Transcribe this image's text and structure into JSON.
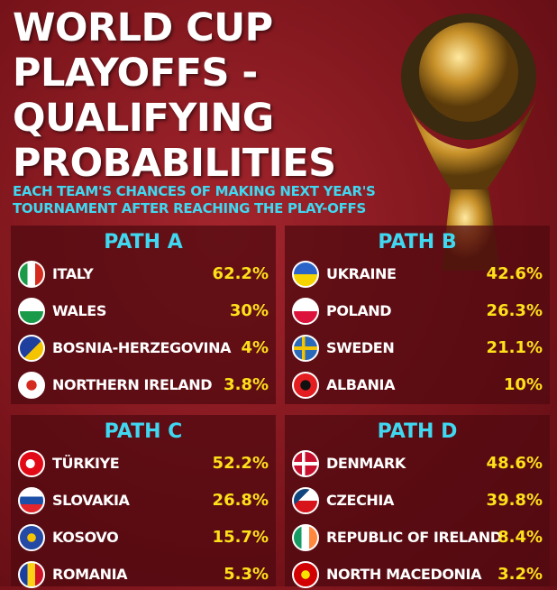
{
  "header": {
    "title": [
      "WORLD CUP",
      "PLAYOFFS -",
      "QUALIFYING",
      "PROBABILITIES"
    ],
    "subtitle": [
      "EACH TEAM'S CHANCES OF MAKING NEXT YEAR'S",
      "TOURNAMENT AFTER REACHING THE PLAY-OFFS"
    ]
  },
  "paths": [
    {
      "name": "PATH A",
      "teams": [
        {
          "name": "ITALY",
          "value": "62.2%"
        },
        {
          "name": "WALES",
          "value": "30%"
        },
        {
          "name": "BOSNIA-HERZEGOVINA",
          "value": "4%"
        },
        {
          "name": "NORTHERN IRELAND",
          "value": "3.8%"
        }
      ]
    },
    {
      "name": "PATH B",
      "teams": [
        {
          "name": "UKRAINE",
          "value": "42.6%"
        },
        {
          "name": "POLAND",
          "value": "26.3%"
        },
        {
          "name": "SWEDEN",
          "value": "21.1%"
        },
        {
          "name": "ALBANIA",
          "value": "10%"
        }
      ]
    },
    {
      "name": "PATH C",
      "teams": [
        {
          "name": "TÜRKIYE",
          "value": "52.2%"
        },
        {
          "name": "SLOVAKIA",
          "value": "26.8%"
        },
        {
          "name": "KOSOVO",
          "value": "15.7%"
        },
        {
          "name": "ROMANIA",
          "value": "5.3%"
        }
      ]
    },
    {
      "name": "PATH D",
      "teams": [
        {
          "name": "DENMARK",
          "value": "48.6%"
        },
        {
          "name": "CZECHIA",
          "value": "39.8%"
        },
        {
          "name": "REPUBLIC OF IRELAND",
          "value": "8.4%"
        },
        {
          "name": "NORTH MACEDONIA",
          "value": "3.2%"
        }
      ]
    }
  ]
}
